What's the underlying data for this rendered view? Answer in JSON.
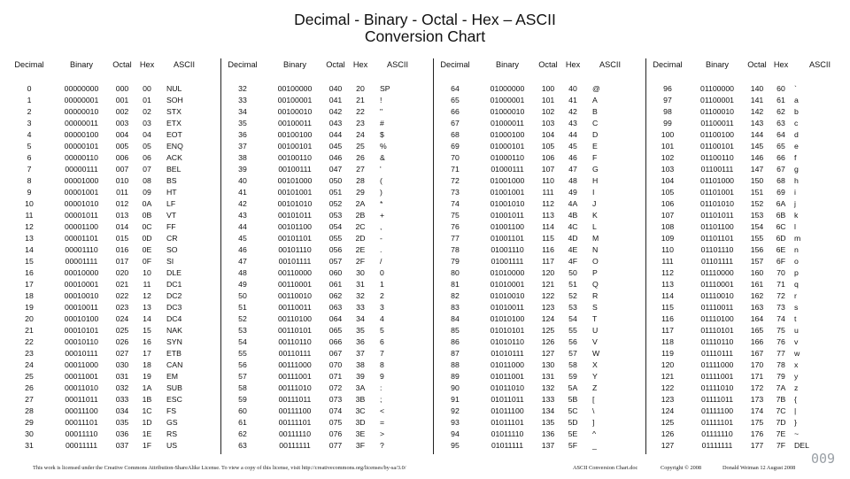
{
  "title": {
    "line1": "Decimal - Binary - Octal - Hex – ASCII",
    "line2": "Conversion Chart"
  },
  "headers": [
    "Decimal",
    "Binary",
    "Octal",
    "Hex",
    "ASCII"
  ],
  "blocks": [
    {
      "rows": [
        [
          "0",
          "00000000",
          "000",
          "00",
          "NUL"
        ],
        [
          "1",
          "00000001",
          "001",
          "01",
          "SOH"
        ],
        [
          "2",
          "00000010",
          "002",
          "02",
          "STX"
        ],
        [
          "3",
          "00000011",
          "003",
          "03",
          "ETX"
        ],
        [
          "4",
          "00000100",
          "004",
          "04",
          "EOT"
        ],
        [
          "5",
          "00000101",
          "005",
          "05",
          "ENQ"
        ],
        [
          "6",
          "00000110",
          "006",
          "06",
          "ACK"
        ],
        [
          "7",
          "00000111",
          "007",
          "07",
          "BEL"
        ],
        [
          "8",
          "00001000",
          "010",
          "08",
          "BS"
        ],
        [
          "9",
          "00001001",
          "011",
          "09",
          "HT"
        ],
        [
          "10",
          "00001010",
          "012",
          "0A",
          "LF"
        ],
        [
          "11",
          "00001011",
          "013",
          "0B",
          "VT"
        ],
        [
          "12",
          "00001100",
          "014",
          "0C",
          "FF"
        ],
        [
          "13",
          "00001101",
          "015",
          "0D",
          "CR"
        ],
        [
          "14",
          "00001110",
          "016",
          "0E",
          "SO"
        ],
        [
          "15",
          "00001111",
          "017",
          "0F",
          "SI"
        ],
        [
          "16",
          "00010000",
          "020",
          "10",
          "DLE"
        ],
        [
          "17",
          "00010001",
          "021",
          "11",
          "DC1"
        ],
        [
          "18",
          "00010010",
          "022",
          "12",
          "DC2"
        ],
        [
          "19",
          "00010011",
          "023",
          "13",
          "DC3"
        ],
        [
          "20",
          "00010100",
          "024",
          "14",
          "DC4"
        ],
        [
          "21",
          "00010101",
          "025",
          "15",
          "NAK"
        ],
        [
          "22",
          "00010110",
          "026",
          "16",
          "SYN"
        ],
        [
          "23",
          "00010111",
          "027",
          "17",
          "ETB"
        ],
        [
          "24",
          "00011000",
          "030",
          "18",
          "CAN"
        ],
        [
          "25",
          "00011001",
          "031",
          "19",
          "EM"
        ],
        [
          "26",
          "00011010",
          "032",
          "1A",
          "SUB"
        ],
        [
          "27",
          "00011011",
          "033",
          "1B",
          "ESC"
        ],
        [
          "28",
          "00011100",
          "034",
          "1C",
          "FS"
        ],
        [
          "29",
          "00011101",
          "035",
          "1D",
          "GS"
        ],
        [
          "30",
          "00011110",
          "036",
          "1E",
          "RS"
        ],
        [
          "31",
          "00011111",
          "037",
          "1F",
          "US"
        ]
      ]
    },
    {
      "rows": [
        [
          "32",
          "00100000",
          "040",
          "20",
          "SP"
        ],
        [
          "33",
          "00100001",
          "041",
          "21",
          "!"
        ],
        [
          "34",
          "00100010",
          "042",
          "22",
          "\""
        ],
        [
          "35",
          "00100011",
          "043",
          "23",
          "#"
        ],
        [
          "36",
          "00100100",
          "044",
          "24",
          "$"
        ],
        [
          "37",
          "00100101",
          "045",
          "25",
          "%"
        ],
        [
          "38",
          "00100110",
          "046",
          "26",
          "&"
        ],
        [
          "39",
          "00100111",
          "047",
          "27",
          "'"
        ],
        [
          "40",
          "00101000",
          "050",
          "28",
          "("
        ],
        [
          "41",
          "00101001",
          "051",
          "29",
          ")"
        ],
        [
          "42",
          "00101010",
          "052",
          "2A",
          "*"
        ],
        [
          "43",
          "00101011",
          "053",
          "2B",
          "+"
        ],
        [
          "44",
          "00101100",
          "054",
          "2C",
          ","
        ],
        [
          "45",
          "00101101",
          "055",
          "2D",
          "-"
        ],
        [
          "46",
          "00101110",
          "056",
          "2E",
          "."
        ],
        [
          "47",
          "00101111",
          "057",
          "2F",
          "/"
        ],
        [
          "48",
          "00110000",
          "060",
          "30",
          "0"
        ],
        [
          "49",
          "00110001",
          "061",
          "31",
          "1"
        ],
        [
          "50",
          "00110010",
          "062",
          "32",
          "2"
        ],
        [
          "51",
          "00110011",
          "063",
          "33",
          "3"
        ],
        [
          "52",
          "00110100",
          "064",
          "34",
          "4"
        ],
        [
          "53",
          "00110101",
          "065",
          "35",
          "5"
        ],
        [
          "54",
          "00110110",
          "066",
          "36",
          "6"
        ],
        [
          "55",
          "00110111",
          "067",
          "37",
          "7"
        ],
        [
          "56",
          "00111000",
          "070",
          "38",
          "8"
        ],
        [
          "57",
          "00111001",
          "071",
          "39",
          "9"
        ],
        [
          "58",
          "00111010",
          "072",
          "3A",
          ":"
        ],
        [
          "59",
          "00111011",
          "073",
          "3B",
          ";"
        ],
        [
          "60",
          "00111100",
          "074",
          "3C",
          "<"
        ],
        [
          "61",
          "00111101",
          "075",
          "3D",
          "="
        ],
        [
          "62",
          "00111110",
          "076",
          "3E",
          ">"
        ],
        [
          "63",
          "00111111",
          "077",
          "3F",
          "?"
        ]
      ]
    },
    {
      "rows": [
        [
          "64",
          "01000000",
          "100",
          "40",
          "@"
        ],
        [
          "65",
          "01000001",
          "101",
          "41",
          "A"
        ],
        [
          "66",
          "01000010",
          "102",
          "42",
          "B"
        ],
        [
          "67",
          "01000011",
          "103",
          "43",
          "C"
        ],
        [
          "68",
          "01000100",
          "104",
          "44",
          "D"
        ],
        [
          "69",
          "01000101",
          "105",
          "45",
          "E"
        ],
        [
          "70",
          "01000110",
          "106",
          "46",
          "F"
        ],
        [
          "71",
          "01000111",
          "107",
          "47",
          "G"
        ],
        [
          "72",
          "01001000",
          "110",
          "48",
          "H"
        ],
        [
          "73",
          "01001001",
          "111",
          "49",
          "I"
        ],
        [
          "74",
          "01001010",
          "112",
          "4A",
          "J"
        ],
        [
          "75",
          "01001011",
          "113",
          "4B",
          "K"
        ],
        [
          "76",
          "01001100",
          "114",
          "4C",
          "L"
        ],
        [
          "77",
          "01001101",
          "115",
          "4D",
          "M"
        ],
        [
          "78",
          "01001110",
          "116",
          "4E",
          "N"
        ],
        [
          "79",
          "01001111",
          "117",
          "4F",
          "O"
        ],
        [
          "80",
          "01010000",
          "120",
          "50",
          "P"
        ],
        [
          "81",
          "01010001",
          "121",
          "51",
          "Q"
        ],
        [
          "82",
          "01010010",
          "122",
          "52",
          "R"
        ],
        [
          "83",
          "01010011",
          "123",
          "53",
          "S"
        ],
        [
          "84",
          "01010100",
          "124",
          "54",
          "T"
        ],
        [
          "85",
          "01010101",
          "125",
          "55",
          "U"
        ],
        [
          "86",
          "01010110",
          "126",
          "56",
          "V"
        ],
        [
          "87",
          "01010111",
          "127",
          "57",
          "W"
        ],
        [
          "88",
          "01011000",
          "130",
          "58",
          "X"
        ],
        [
          "89",
          "01011001",
          "131",
          "59",
          "Y"
        ],
        [
          "90",
          "01011010",
          "132",
          "5A",
          "Z"
        ],
        [
          "91",
          "01011011",
          "133",
          "5B",
          "["
        ],
        [
          "92",
          "01011100",
          "134",
          "5C",
          "\\"
        ],
        [
          "93",
          "01011101",
          "135",
          "5D",
          "]"
        ],
        [
          "94",
          "01011110",
          "136",
          "5E",
          "^"
        ],
        [
          "95",
          "01011111",
          "137",
          "5F",
          "_"
        ]
      ]
    },
    {
      "rows": [
        [
          "96",
          "01100000",
          "140",
          "60",
          "`"
        ],
        [
          "97",
          "01100001",
          "141",
          "61",
          "a"
        ],
        [
          "98",
          "01100010",
          "142",
          "62",
          "b"
        ],
        [
          "99",
          "01100011",
          "143",
          "63",
          "c"
        ],
        [
          "100",
          "01100100",
          "144",
          "64",
          "d"
        ],
        [
          "101",
          "01100101",
          "145",
          "65",
          "e"
        ],
        [
          "102",
          "01100110",
          "146",
          "66",
          "f"
        ],
        [
          "103",
          "01100111",
          "147",
          "67",
          "g"
        ],
        [
          "104",
          "01101000",
          "150",
          "68",
          "h"
        ],
        [
          "105",
          "01101001",
          "151",
          "69",
          "i"
        ],
        [
          "106",
          "01101010",
          "152",
          "6A",
          "j"
        ],
        [
          "107",
          "01101011",
          "153",
          "6B",
          "k"
        ],
        [
          "108",
          "01101100",
          "154",
          "6C",
          "l"
        ],
        [
          "109",
          "01101101",
          "155",
          "6D",
          "m"
        ],
        [
          "110",
          "01101110",
          "156",
          "6E",
          "n"
        ],
        [
          "111",
          "01101111",
          "157",
          "6F",
          "o"
        ],
        [
          "112",
          "01110000",
          "160",
          "70",
          "p"
        ],
        [
          "113",
          "01110001",
          "161",
          "71",
          "q"
        ],
        [
          "114",
          "01110010",
          "162",
          "72",
          "r"
        ],
        [
          "115",
          "01110011",
          "163",
          "73",
          "s"
        ],
        [
          "116",
          "01110100",
          "164",
          "74",
          "t"
        ],
        [
          "117",
          "01110101",
          "165",
          "75",
          "u"
        ],
        [
          "118",
          "01110110",
          "166",
          "76",
          "v"
        ],
        [
          "119",
          "01110111",
          "167",
          "77",
          "w"
        ],
        [
          "120",
          "01111000",
          "170",
          "78",
          "x"
        ],
        [
          "121",
          "01111001",
          "171",
          "79",
          "y"
        ],
        [
          "122",
          "01111010",
          "172",
          "7A",
          "z"
        ],
        [
          "123",
          "01111011",
          "173",
          "7B",
          "{"
        ],
        [
          "124",
          "01111100",
          "174",
          "7C",
          "|"
        ],
        [
          "125",
          "01111101",
          "175",
          "7D",
          "}"
        ],
        [
          "126",
          "01111110",
          "176",
          "7E",
          "~"
        ],
        [
          "127",
          "01111111",
          "177",
          "7F",
          "DEL"
        ]
      ]
    }
  ],
  "footer": {
    "license": "This work is licensed under the Creative Commons Attribution-ShareAlike License. To view a copy of this license, visit http://creativecommons.org/licenses/by-sa/3.0/",
    "file": "ASCII Conversion Chart.doc",
    "copyright": "Copyright © 2008",
    "author_date": "Donald Weiman 12 August 2008"
  },
  "page_number": "009"
}
